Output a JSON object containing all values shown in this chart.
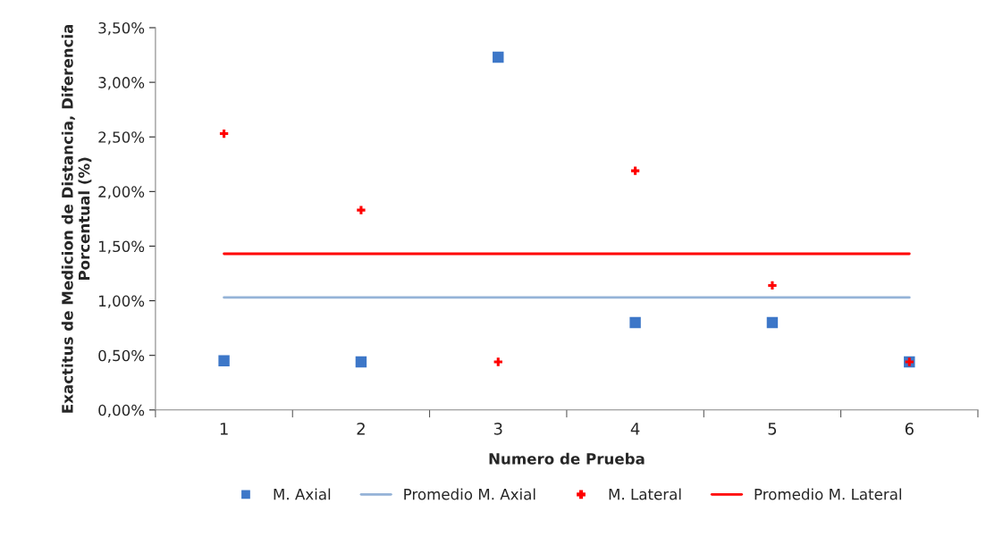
{
  "chart_data": {
    "type": "scatter",
    "xlabel": "Numero de Prueba",
    "ylabel": "Exactitus de Medicion de Distancia, Diferencia Porcentual (%)",
    "categories": [
      "1",
      "2",
      "3",
      "4",
      "5",
      "6"
    ],
    "series": [
      {
        "name": "M. Axial",
        "color": "#3d77c8",
        "marker": "square",
        "values": [
          0.45,
          0.44,
          3.23,
          0.8,
          0.8,
          0.44
        ]
      },
      {
        "type": "line",
        "name": "Promedio M. Axial",
        "color": "#95b3d7",
        "marker": "none",
        "values": [
          1.03,
          1.03,
          1.03,
          1.03,
          1.03,
          1.03
        ]
      },
      {
        "name": "M. Lateral",
        "color": "#ff0000",
        "marker": "cross",
        "values": [
          2.53,
          1.83,
          0.44,
          2.19,
          1.14,
          0.44
        ]
      },
      {
        "type": "line",
        "name": "Promedio M. Lateral",
        "color": "#ff0000",
        "marker": "none",
        "values": [
          1.43,
          1.43,
          1.43,
          1.43,
          1.43,
          1.43
        ]
      }
    ],
    "ylim": [
      0,
      3.5
    ],
    "yticks": [
      {
        "value": 0,
        "label": "0,00%"
      },
      {
        "value": 0.5,
        "label": "0,50%"
      },
      {
        "value": 1,
        "label": "1,00%"
      },
      {
        "value": 1.5,
        "label": "1,50%"
      },
      {
        "value": 2,
        "label": "2,00%"
      },
      {
        "value": 2.5,
        "label": "2,50%"
      },
      {
        "value": 3,
        "label": "3,00%"
      },
      {
        "value": 3.5,
        "label": "3,50%"
      }
    ],
    "grid": false,
    "legend": "bottom"
  }
}
